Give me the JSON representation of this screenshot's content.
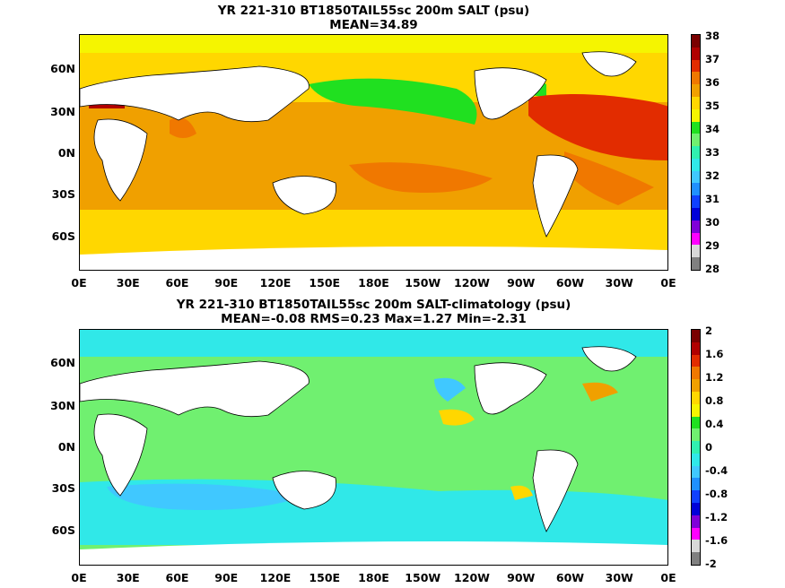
{
  "panels": [
    {
      "title_line1": "YR 221-310 BT1850TAIL55sc 200m SALT (psu)",
      "title_line2": "MEAN=34.89",
      "colorbar": {
        "labels": [
          "38",
          "37",
          "36",
          "35",
          "34",
          "33",
          "32",
          "31",
          "30",
          "29",
          "28"
        ],
        "colors": [
          "#7a0000",
          "#b00000",
          "#e22c00",
          "#f07800",
          "#f0a000",
          "#ffd700",
          "#f5f500",
          "#20e020",
          "#70f070",
          "#30f0b0",
          "#30e8e8",
          "#40c8ff",
          "#2090ff",
          "#1040ff",
          "#0000d8",
          "#8000d8",
          "#ff00ff",
          "#d8d8d8",
          "#808080"
        ]
      },
      "lat_labels": [
        "60N",
        "30N",
        "0N",
        "30S",
        "60S"
      ],
      "lon_labels": [
        "0E",
        "30E",
        "60E",
        "90E",
        "120E",
        "150E",
        "180E",
        "150W",
        "120W",
        "90W",
        "60W",
        "30W",
        "0E"
      ]
    },
    {
      "title_line1": "YR 221-310 BT1850TAIL55sc 200m SALT-climatology (psu)",
      "title_line2": "MEAN=-0.08   RMS=0.23   Max=1.27   Min=-2.31",
      "colorbar": {
        "labels": [
          "2",
          "1.6",
          "1.2",
          "0.8",
          "0.4",
          "0",
          "-0.4",
          "-0.8",
          "-1.2",
          "-1.6",
          "-2"
        ],
        "colors": [
          "#7a0000",
          "#b00000",
          "#e22c00",
          "#f07800",
          "#f0a000",
          "#ffd700",
          "#f5f500",
          "#20e020",
          "#70f070",
          "#30f0b0",
          "#30e8e8",
          "#40c8ff",
          "#2090ff",
          "#1040ff",
          "#0000d8",
          "#8000d8",
          "#ff00ff",
          "#d8d8d8",
          "#808080"
        ]
      },
      "lat_labels": [
        "60N",
        "30N",
        "0N",
        "30S",
        "60S"
      ],
      "lon_labels": [
        "0E",
        "30E",
        "60E",
        "90E",
        "120E",
        "150E",
        "180E",
        "150W",
        "120W",
        "90W",
        "60W",
        "30W",
        "0E"
      ]
    }
  ]
}
